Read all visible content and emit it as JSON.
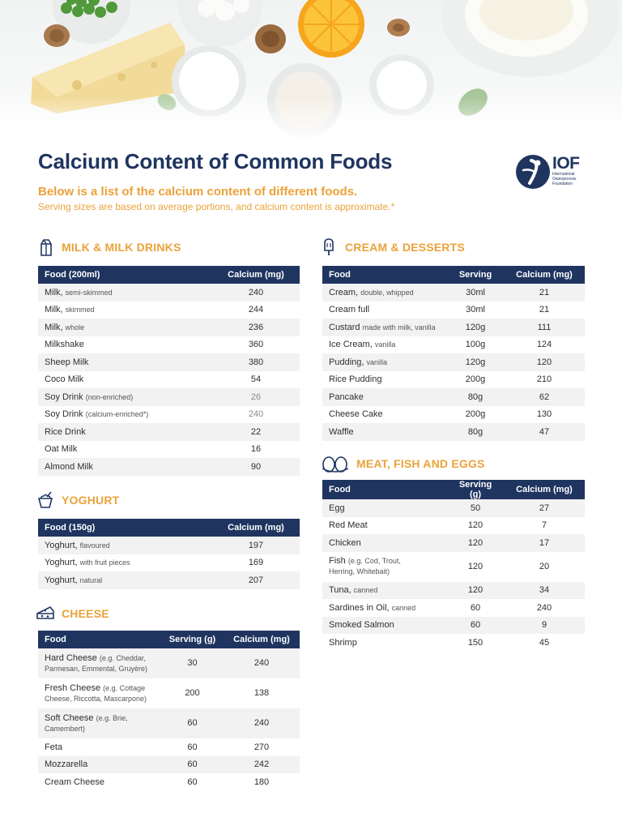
{
  "header": {
    "title": "Calcium Content of Common Foods",
    "subtitle": "Below is a list of the calcium content of different foods.",
    "note": "Serving sizes are based on average portions, and calcium content is approximate.*"
  },
  "logo": {
    "text": "IOF",
    "sub_lines": [
      "International",
      "Osteoporosis",
      "Foundation"
    ]
  },
  "milk": {
    "title": "MILK & MILK DRINKS",
    "icon": "milk-carton-icon",
    "headers": [
      "Food (200ml)",
      "Calcium (mg)"
    ],
    "rows": [
      {
        "name": "Milk,",
        "qual": "semi-skimmed",
        "calcium": "240"
      },
      {
        "name": "Milk,",
        "qual": "skimmed",
        "calcium": "244"
      },
      {
        "name": "Milk,",
        "qual": "whole",
        "calcium": "236"
      },
      {
        "name": "Milkshake",
        "qual": "",
        "calcium": "360"
      },
      {
        "name": "Sheep Milk",
        "qual": "",
        "calcium": "380"
      },
      {
        "name": "Coco Milk",
        "qual": "",
        "calcium": "54"
      },
      {
        "name": "Soy Drink",
        "qual": "(non-enriched)",
        "calcium": "26"
      },
      {
        "name": "Soy Drink",
        "qual": "(calcium-enriched*)",
        "calcium": "240"
      },
      {
        "name": "Rice Drink",
        "qual": "",
        "calcium": "22"
      },
      {
        "name": "Oat Milk",
        "qual": "",
        "calcium": "16"
      },
      {
        "name": "Almond Milk",
        "qual": "",
        "calcium": "90"
      }
    ]
  },
  "yoghurt": {
    "title": "YOGHURT",
    "icon": "yoghurt-cup-icon",
    "headers": [
      "Food (150g)",
      "Calcium (mg)"
    ],
    "rows": [
      {
        "name": "Yoghurt,",
        "qual": "flavoured",
        "calcium": "197"
      },
      {
        "name": "Yoghurt,",
        "qual": "with fruit pieces",
        "calcium": "169"
      },
      {
        "name": "Yoghurt,",
        "qual": "natural",
        "calcium": "207"
      }
    ]
  },
  "cheese": {
    "title": "CHEESE",
    "icon": "cheese-icon",
    "headers": [
      "Food",
      "Serving (g)",
      "Calcium (mg)"
    ],
    "rows": [
      {
        "name": "Hard Cheese",
        "qual": "(e.g. Cheddar,",
        "qual2": "Parmesan, Emmental, Gruyère)",
        "serving": "30",
        "calcium": "240"
      },
      {
        "name": "Fresh Cheese",
        "qual": "(e.g. Cottage",
        "qual2": "Cheese, Riccotta, Mascarpone)",
        "serving": "200",
        "calcium": "138"
      },
      {
        "name": "Soft Cheese",
        "qual": "(e.g. Brie,",
        "qual2": "Camembert)",
        "serving": "60",
        "calcium": "240"
      },
      {
        "name": "Feta",
        "qual": "",
        "qual2": "",
        "serving": "60",
        "calcium": "270"
      },
      {
        "name": "Mozzarella",
        "qual": "",
        "qual2": "",
        "serving": "60",
        "calcium": "242"
      },
      {
        "name": "Cream Cheese",
        "qual": "",
        "qual2": "",
        "serving": "60",
        "calcium": "180"
      }
    ]
  },
  "cream": {
    "title": "CREAM & DESSERTS",
    "icon": "ice-cream-icon",
    "headers": [
      "Food",
      "Serving",
      "Calcium (mg)"
    ],
    "rows": [
      {
        "name": "Cream,",
        "qual": "double, whipped",
        "serving": "30ml",
        "calcium": "21"
      },
      {
        "name": "Cream full",
        "qual": "",
        "serving": "30ml",
        "calcium": "21"
      },
      {
        "name": "Custard",
        "qual": "made with milk, vanilla",
        "serving": "120g",
        "calcium": "111"
      },
      {
        "name": "Ice Cream,",
        "qual": "vanilla",
        "serving": "100g",
        "calcium": "124"
      },
      {
        "name": "Pudding,",
        "qual": "vanilla",
        "serving": "120g",
        "calcium": "120"
      },
      {
        "name": "Rice Pudding",
        "qual": "",
        "serving": "200g",
        "calcium": "210"
      },
      {
        "name": "Pancake",
        "qual": "",
        "serving": "80g",
        "calcium": "62"
      },
      {
        "name": "Cheese Cake",
        "qual": "",
        "serving": "200g",
        "calcium": "130"
      },
      {
        "name": "Waffle",
        "qual": "",
        "serving": "80g",
        "calcium": "47"
      }
    ]
  },
  "meat": {
    "title": "MEAT, FISH AND EGGS",
    "icon": "eggs-icon",
    "headers": [
      "Food",
      "Serving (g)",
      "Calcium (mg)"
    ],
    "rows": [
      {
        "name": "Egg",
        "qual": "",
        "qual2": "",
        "serving": "50",
        "calcium": "27"
      },
      {
        "name": "Red Meat",
        "qual": "",
        "qual2": "",
        "serving": "120",
        "calcium": "7"
      },
      {
        "name": "Chicken",
        "qual": "",
        "qual2": "",
        "serving": "120",
        "calcium": "17"
      },
      {
        "name": "Fish",
        "qual": "(e.g. Cod, Trout,",
        "qual2": "Herring, Whitebait)",
        "serving": "120",
        "calcium": "20"
      },
      {
        "name": "Tuna,",
        "qual": "canned",
        "qual2": "",
        "serving": "120",
        "calcium": "34"
      },
      {
        "name": "Sardines in Oil,",
        "qual": "canned",
        "qual2": "",
        "serving": "60",
        "calcium": "240"
      },
      {
        "name": "Smoked Salmon",
        "qual": "",
        "qual2": "",
        "serving": "60",
        "calcium": "9"
      },
      {
        "name": "Shrimp",
        "qual": "",
        "qual2": "",
        "serving": "150",
        "calcium": "45"
      }
    ]
  }
}
